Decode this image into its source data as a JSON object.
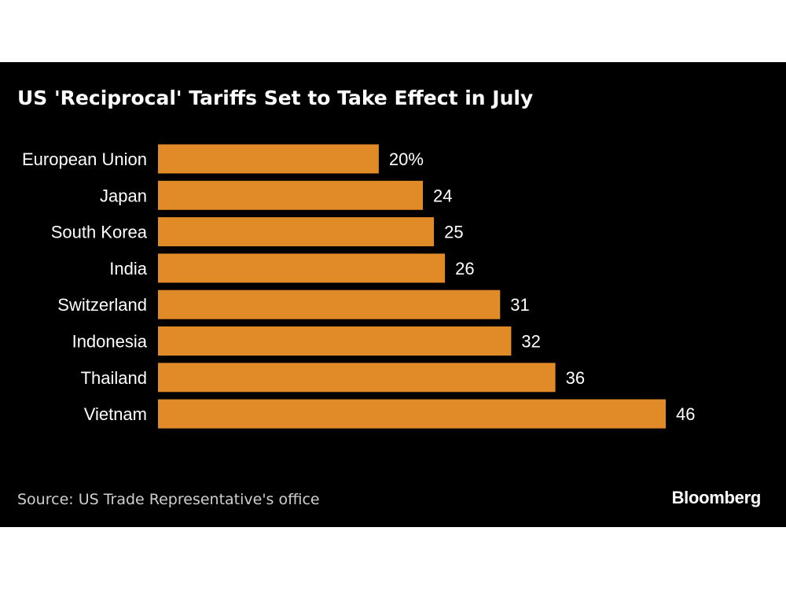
{
  "chart_data": {
    "type": "bar",
    "orientation": "horizontal",
    "title": "US 'Reciprocal' Tariffs Set to Take Effect in July",
    "categories": [
      "European Union",
      "Japan",
      "South Korea",
      "India",
      "Switzerland",
      "Indonesia",
      "Thailand",
      "Vietnam"
    ],
    "values": [
      20,
      24,
      25,
      26,
      31,
      32,
      36,
      46
    ],
    "value_labels": [
      "20%",
      "24",
      "25",
      "26",
      "31",
      "32",
      "36",
      "46"
    ],
    "unit": "%",
    "xlim": [
      0,
      46
    ],
    "grid": false,
    "legend": "none",
    "bar_color": "#e08a28",
    "background_color": "#000000",
    "text_color": "#ffffff"
  },
  "footer": {
    "source": "Source: US Trade Representative's office",
    "brand": "Bloomberg"
  }
}
